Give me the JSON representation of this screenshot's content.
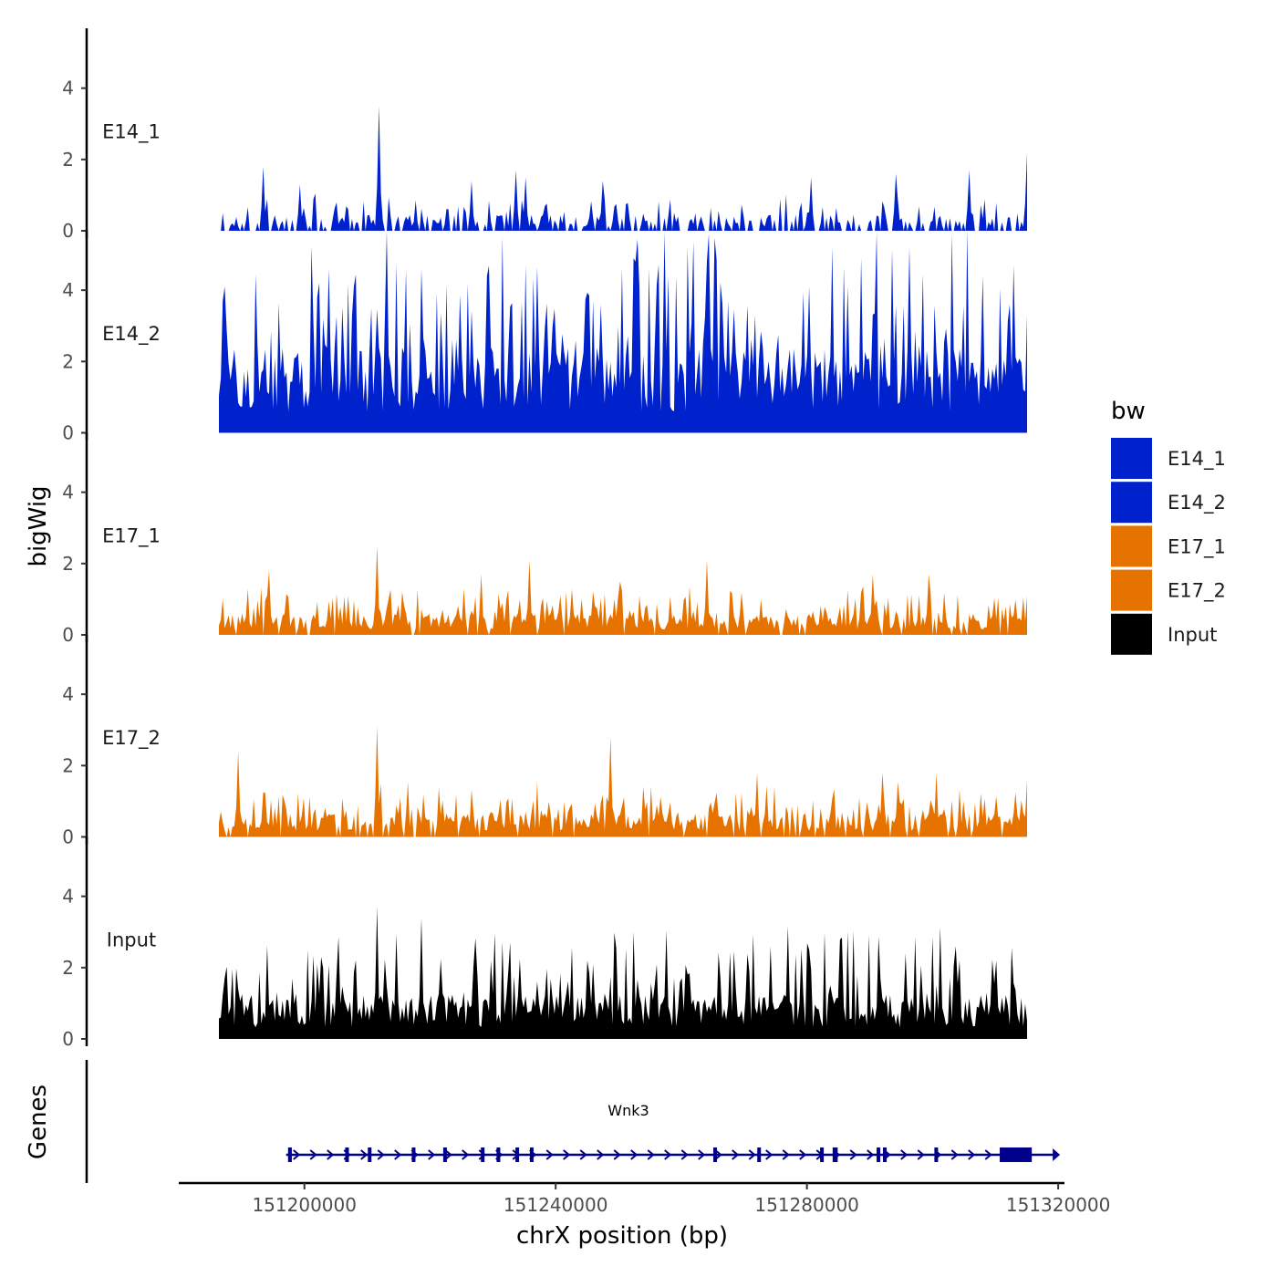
{
  "chart_data": {
    "type": "area",
    "title": "",
    "ylabel": "bigWig",
    "xlabel": "chrX position (bp)",
    "xlim": [
      151180000,
      151321000
    ],
    "ylim": [
      0,
      5.5
    ],
    "yticks": [
      0,
      2,
      4
    ],
    "ytick_labels": [
      "0",
      "2",
      "4"
    ],
    "xticks": [
      151200000,
      151240000,
      151280000,
      151320000
    ],
    "xtick_labels": [
      "151200000",
      "151240000",
      "151280000",
      "151320000"
    ],
    "data_range": [
      151200000,
      151320000
    ],
    "tracks": [
      {
        "name": "E14_1",
        "color": "#0022CC",
        "seed": 11,
        "base": 0.28,
        "mid": 0.42,
        "sparsity": 0.42,
        "peaks": [
          [
            151206500,
            1.8
          ],
          [
            151212000,
            1.3
          ],
          [
            151223700,
            3.5
          ],
          [
            151237500,
            1.4
          ],
          [
            151244000,
            1.7
          ],
          [
            151245500,
            1.5
          ],
          [
            151257000,
            1.4
          ],
          [
            151288000,
            1.5
          ],
          [
            151300500,
            1.6
          ],
          [
            151311500,
            1.7
          ],
          [
            151320000,
            2.2
          ]
        ]
      },
      {
        "name": "E14_2",
        "color": "#0022CC",
        "seed": 23,
        "base": 1.5,
        "mid": 2.4,
        "sparsity": 0.0,
        "peaks": [
          [
            151200500,
            3.7
          ],
          [
            151215500,
            3.2
          ],
          [
            151222500,
            3.5
          ],
          [
            151230000,
            4.6
          ],
          [
            151255500,
            3.7
          ],
          [
            151261500,
            4.9
          ],
          [
            151275500,
            3.7
          ],
          [
            151279500,
            3.3
          ],
          [
            151287500,
            4.1
          ],
          [
            151291000,
            5.2
          ],
          [
            151295500,
            4.9
          ],
          [
            151302500,
            5.2
          ],
          [
            151313500,
            4.4
          ],
          [
            151318000,
            4.7
          ],
          [
            151320000,
            3.3
          ]
        ]
      },
      {
        "name": "E17_1",
        "color": "#E67300",
        "seed": 37,
        "base": 0.38,
        "mid": 0.55,
        "sparsity": 0.08,
        "peaks": [
          [
            151207500,
            1.8
          ],
          [
            151223500,
            2.5
          ],
          [
            151239000,
            1.7
          ],
          [
            151246000,
            2.1
          ],
          [
            151259500,
            1.5
          ],
          [
            151272500,
            2.1
          ],
          [
            151297000,
            1.7
          ],
          [
            151305500,
            1.7
          ],
          [
            151320000,
            1.1
          ]
        ]
      },
      {
        "name": "E17_2",
        "color": "#E67300",
        "seed": 53,
        "base": 0.42,
        "mid": 0.6,
        "sparsity": 0.12,
        "peaks": [
          [
            151203000,
            2.4
          ],
          [
            151223500,
            3.1
          ],
          [
            151258000,
            2.8
          ],
          [
            151280000,
            1.8
          ],
          [
            151298500,
            1.8
          ],
          [
            151306500,
            1.8
          ],
          [
            151320000,
            1.6
          ]
        ]
      },
      {
        "name": "Input",
        "color": "#000000",
        "seed": 71,
        "base": 0.8,
        "mid": 1.3,
        "sparsity": 0.0,
        "peaks": [
          [
            151223500,
            3.7
          ],
          [
            151230200,
            3.4
          ],
          [
            151240500,
            2.2
          ],
          [
            151282000,
            2.6
          ],
          [
            151287500,
            2.5
          ],
          [
            151309500,
            2.6
          ],
          [
            151315500,
            2.2
          ]
        ]
      }
    ],
    "legend": {
      "title": "bw",
      "position": "right",
      "entries": [
        {
          "label": "E14_1",
          "color": "#0022CC"
        },
        {
          "label": "E14_2",
          "color": "#0022CC"
        },
        {
          "label": "E17_1",
          "color": "#E67300"
        },
        {
          "label": "E17_2",
          "color": "#E67300"
        },
        {
          "label": "Input",
          "color": "#000000"
        }
      ]
    },
    "genes_panel": {
      "ylabel": "Genes",
      "gene": "Wnk3",
      "color": "#00008B",
      "start": 151200000,
      "end": 151320000,
      "strand": "+",
      "exons": [
        [
          151200300,
          151200900
        ],
        [
          151209400,
          151209700
        ],
        [
          151213000,
          151213200
        ],
        [
          151220000,
          151220200
        ],
        [
          151225000,
          151225200
        ],
        [
          151231000,
          151231200
        ],
        [
          151233500,
          151233700
        ],
        [
          151236500,
          151236700
        ],
        [
          151238800,
          151239300
        ],
        [
          151268000,
          151268200
        ],
        [
          151275000,
          151275200
        ],
        [
          151285000,
          151285200
        ],
        [
          151287000,
          151287800
        ],
        [
          151294000,
          151294300
        ],
        [
          151295000,
          151295600
        ],
        [
          151303200,
          151303400
        ],
        [
          151313600,
          151318700
        ]
      ]
    }
  }
}
